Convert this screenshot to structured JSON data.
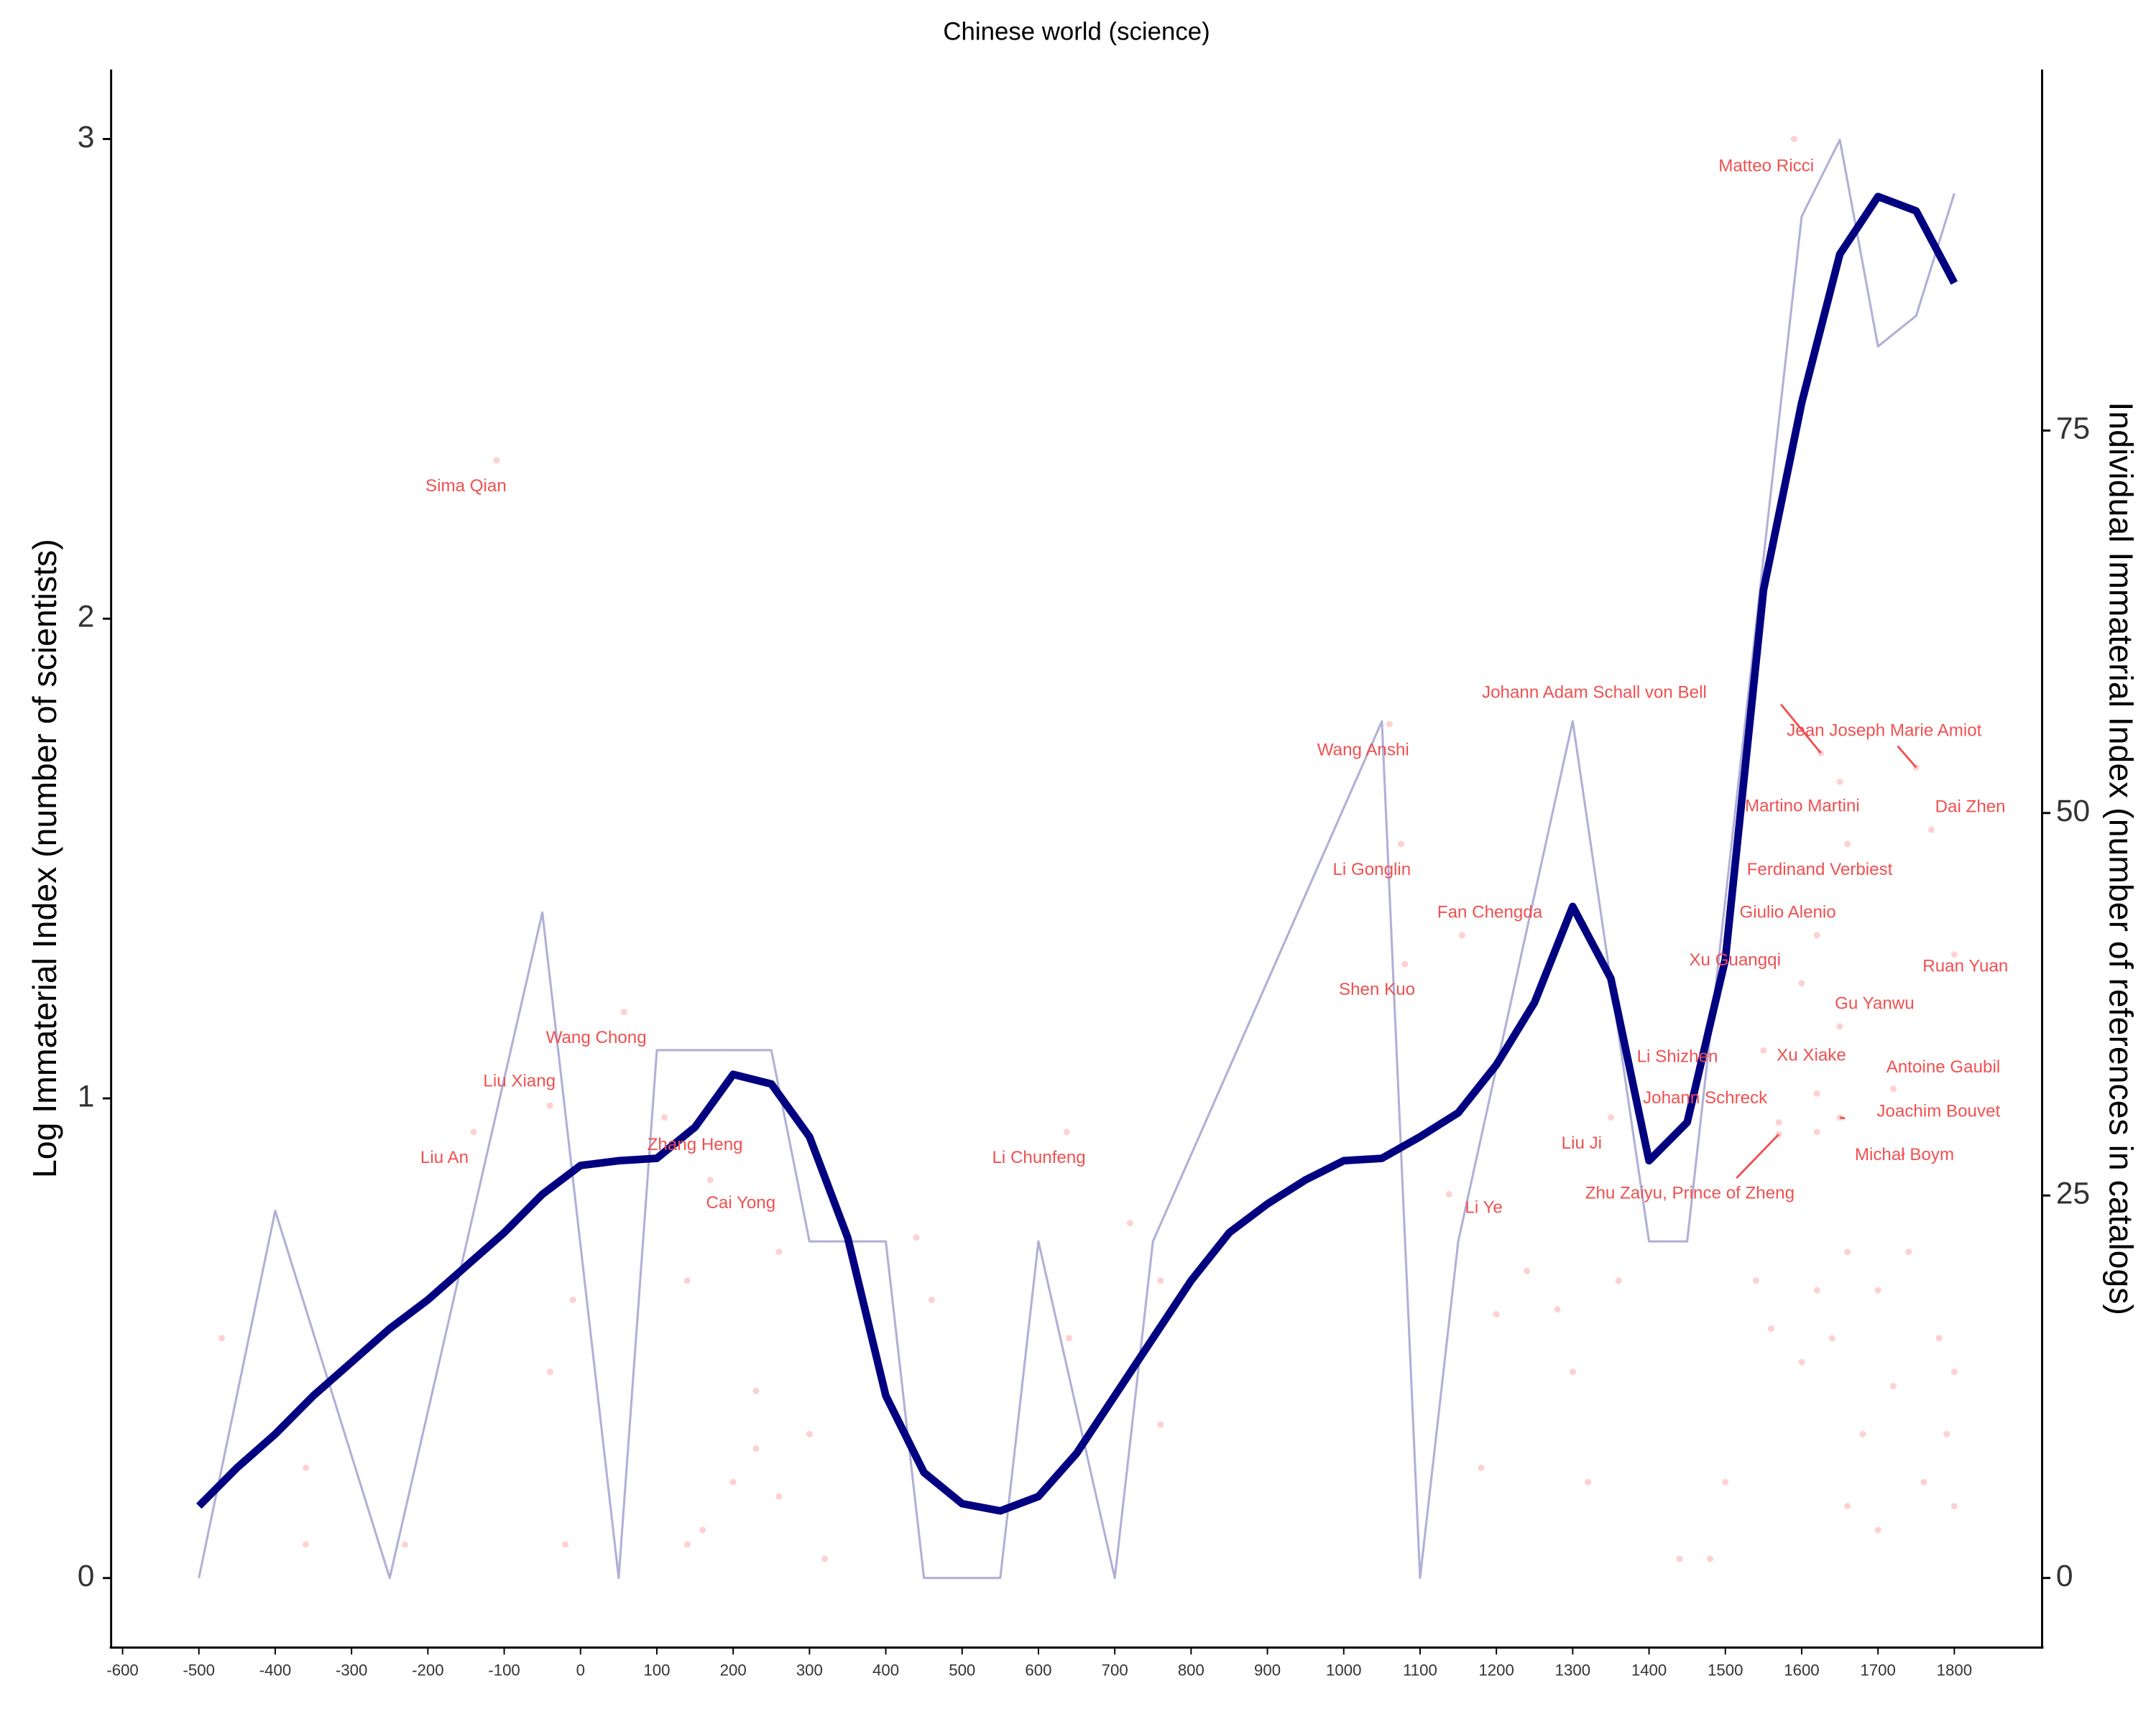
{
  "chart_data": {
    "type": "line",
    "title": "Chinese world (science)",
    "y_label": "Log Immaterial Index (number of scientists)",
    "y2_label": "Individual Immaterial Index (number of references in catalogs)",
    "xlim": [
      -615,
      1915
    ],
    "xticks": [
      -600,
      -500,
      -400,
      -300,
      -200,
      -100,
      0,
      100,
      200,
      300,
      400,
      500,
      600,
      700,
      800,
      900,
      1000,
      1100,
      1200,
      1300,
      1400,
      1500,
      1600,
      1700,
      1800
    ],
    "ylim": [
      -0.145,
      3.145
    ],
    "yticks": [
      0,
      1,
      2,
      3
    ],
    "y2lim": [
      -4.55,
      98.6
    ],
    "y2ticks": [
      0,
      25,
      50,
      75
    ],
    "series": [
      {
        "color": "#000080",
        "x": [
          -500,
          -450,
          -400,
          -350,
          -300,
          -250,
          -200,
          -150,
          -100,
          -50,
          0,
          50,
          100,
          150,
          200,
          250,
          300,
          350,
          400,
          450,
          500,
          550,
          600,
          650,
          700,
          750,
          800,
          850,
          900,
          950,
          1000,
          1050,
          1100,
          1150,
          1200,
          1250,
          1300,
          1350,
          1400,
          1450,
          1500,
          1550,
          1600,
          1650,
          1700,
          1750,
          1800
        ],
        "values": [
          0.15,
          0.23,
          0.3,
          0.38,
          0.45,
          0.52,
          0.58,
          0.65,
          0.72,
          0.8,
          0.86,
          0.87,
          0.875,
          0.94,
          1.05,
          1.03,
          0.92,
          0.71,
          0.38,
          0.22,
          0.155,
          0.14,
          0.17,
          0.26,
          0.38,
          0.5,
          0.62,
          0.72,
          0.78,
          0.83,
          0.87,
          0.875,
          0.92,
          0.97,
          1.07,
          1.2,
          1.4,
          1.25,
          0.87,
          0.95,
          1.29,
          2.06,
          2.45,
          2.76,
          2.88,
          2.85,
          2.7
        ]
      },
      {
        "color": "#b0b0d8",
        "axis": "y2",
        "x": [
          -500,
          -400,
          -250,
          -50,
          50,
          100,
          250,
          300,
          400,
          450,
          550,
          600,
          700,
          750,
          1050,
          1100,
          1150,
          1300,
          1400,
          1450,
          1600,
          1650,
          1700,
          1750,
          1800
        ],
        "values": [
          0,
          24,
          0,
          43.5,
          0,
          34.5,
          34.5,
          22,
          22,
          0,
          0,
          22,
          0,
          22,
          56,
          0,
          22,
          56,
          22,
          22,
          89,
          94,
          80.5,
          82.5,
          90.5
        ]
      }
    ],
    "points": {
      "color": "#ffc0c0",
      "x": [
        1590,
        -110,
        1060,
        1075,
        1155,
        1080,
        1625,
        1750,
        1650,
        1770,
        1660,
        1620,
        1600,
        1800,
        1650,
        1550,
        1620,
        1720,
        1570,
        1650,
        1620,
        1350,
        1570,
        1138,
        637,
        57,
        -40,
        -140,
        110,
        170,
        -470,
        -360,
        -360,
        -230,
        -40,
        -20,
        -10,
        140,
        140,
        160,
        230,
        230,
        200,
        260,
        260,
        300,
        320,
        440,
        460,
        640,
        720,
        760,
        760,
        1180,
        1200,
        1240,
        1280,
        1300,
        1320,
        1360,
        1440,
        1480,
        1500,
        1540,
        1560,
        1600,
        1620,
        1640,
        1660,
        1680,
        1700,
        1720,
        1740,
        1760,
        1780,
        1800,
        1800,
        1790,
        1700,
        1660
      ],
      "y": [
        3.0,
        2.33,
        1.78,
        1.53,
        1.34,
        1.28,
        1.72,
        1.69,
        1.66,
        1.56,
        1.53,
        1.34,
        1.24,
        1.3,
        1.15,
        1.1,
        1.01,
        1.02,
        0.95,
        0.96,
        0.93,
        0.96,
        0.925,
        0.8,
        0.93,
        1.18,
        0.985,
        0.93,
        0.96,
        0.83,
        0.5,
        0.23,
        0.07,
        0.07,
        0.43,
        0.07,
        0.58,
        0.62,
        0.07,
        0.1,
        0.39,
        0.27,
        0.2,
        0.68,
        0.17,
        0.3,
        0.04,
        0.71,
        0.58,
        0.5,
        0.74,
        0.62,
        0.32,
        0.23,
        0.55,
        0.64,
        0.56,
        0.43,
        0.2,
        0.62,
        0.04,
        0.04,
        0.2,
        0.62,
        0.52,
        0.45,
        0.6,
        0.5,
        0.68,
        0.3,
        0.6,
        0.4,
        0.68,
        0.2,
        0.5,
        0.43,
        0.15,
        0.3,
        0.1,
        0.15
      ],
      "labels": [
        "Matteo Ricci",
        "Sima Qian",
        "Wang Anshi",
        "Li Gonglin",
        "Fan Chengda",
        "Shen Kuo",
        "Johann Adam Schall von Bell",
        "Jean Joseph Marie Amiot",
        "Martino Martini",
        "Dai Zhen",
        "Ferdinand Verbiest",
        "Giulio Alenio",
        "Xu Guangqi",
        "Ruan Yuan",
        "Gu Yanwu",
        "Li Shizhen",
        "Xu Xiake",
        "Antoine Gaubil",
        "Johann Schreck",
        "Joachim Bouvet",
        "Michał Boym",
        "Liu Ji",
        "Zhu Zaiyu, Prince of Zheng",
        "Li Ye",
        "Li Chunfeng",
        "Wang Chong",
        "Liu Xiang",
        "Liu An",
        "Zhang Heng",
        "Cai Yong",
        null,
        null,
        null,
        null,
        null,
        null,
        null,
        null,
        null,
        null,
        null,
        null,
        null,
        null,
        null,
        null,
        null,
        null,
        null,
        null,
        null,
        null,
        null,
        null,
        null,
        null,
        null,
        null,
        null,
        null,
        null,
        null,
        null,
        null,
        null,
        null,
        null,
        null,
        null,
        null,
        null,
        null,
        null,
        null,
        null,
        null,
        null,
        null,
        null,
        null
      ]
    }
  }
}
